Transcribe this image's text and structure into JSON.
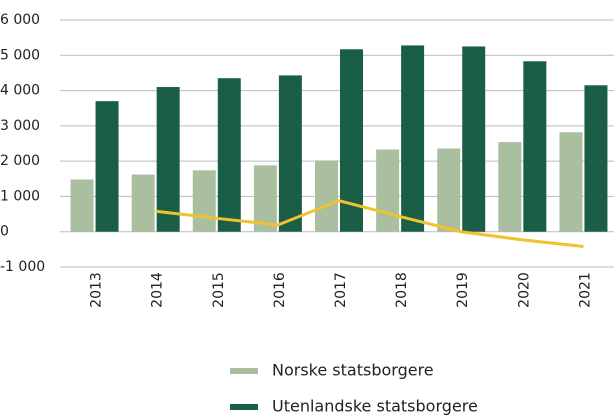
{
  "chart_data": {
    "type": "bar",
    "categories": [
      "2013",
      "2014",
      "2015",
      "2016",
      "2017",
      "2018",
      "2019",
      "2020",
      "2021"
    ],
    "series": [
      {
        "name": "Norske statsborgere",
        "color": "#a9bfa0",
        "values": [
          1480,
          1620,
          1740,
          1880,
          2020,
          2330,
          2360,
          2540,
          2820
        ]
      },
      {
        "name": "Utenlandske statsborgere",
        "color": "#1b5e46",
        "values": [
          3700,
          4100,
          4350,
          4430,
          5170,
          5280,
          5250,
          4830,
          4150
        ]
      },
      {
        "type": "line",
        "color": "#f2c12e",
        "values": [
          null,
          580,
          380,
          190,
          880,
          430,
          0,
          -230,
          -420
        ]
      }
    ],
    "ylim": [
      -1000,
      6000
    ],
    "yticks": [
      {
        "value": -1000,
        "label": "-1 000"
      },
      0,
      {
        "value": 1000,
        "label": "1 000"
      },
      {
        "value": 2000,
        "label": "2 000"
      },
      {
        "value": 3000,
        "label": "3 000"
      },
      {
        "value": 4000,
        "label": "4 000"
      },
      {
        "value": 5000,
        "label": "5 000"
      },
      {
        "value": 6000,
        "label": "6 000"
      }
    ],
    "grid": true
  }
}
